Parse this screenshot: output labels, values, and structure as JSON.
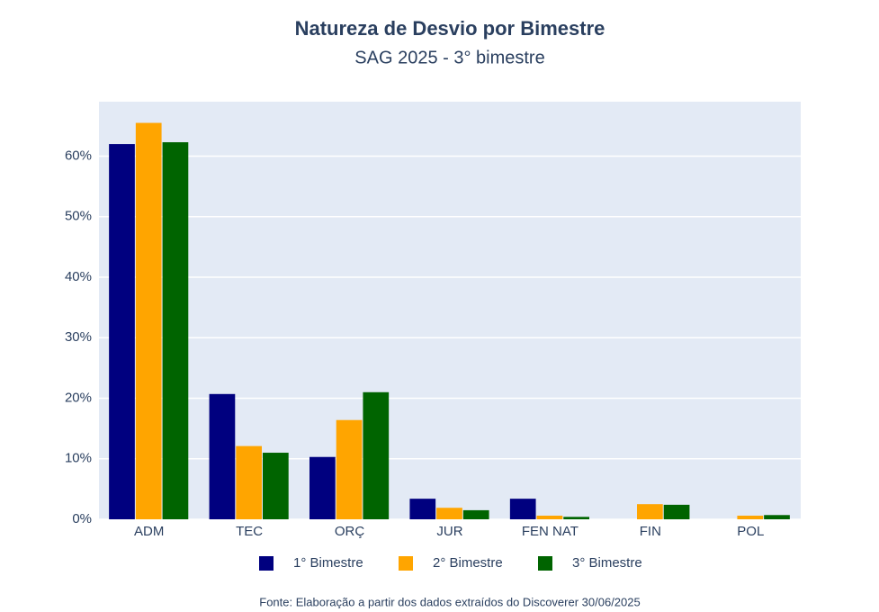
{
  "chart_data": {
    "type": "bar",
    "title": "Natureza de Desvio por Bimestre",
    "subtitle": "SAG 2025 - 3° bimestre",
    "source": "Fonte: Elaboração a partir dos dados extraídos do Discoverer 30/06/2025",
    "categories": [
      "ADM",
      "TEC",
      "ORÇ",
      "JUR",
      "FEN NAT",
      "FIN",
      "POL"
    ],
    "series": [
      {
        "name": "1° Bimestre",
        "color": "#00007f",
        "values": [
          62,
          20.7,
          10.3,
          3.4,
          3.4,
          0,
          0
        ]
      },
      {
        "name": "2° Bimestre",
        "color": "#ffa500",
        "values": [
          65.5,
          12.1,
          16.4,
          1.9,
          0.6,
          2.5,
          0.6
        ]
      },
      {
        "name": "3° Bimestre",
        "color": "#006400",
        "values": [
          62.3,
          11,
          21,
          1.5,
          0.4,
          2.4,
          0.7
        ]
      }
    ],
    "ylim": [
      0,
      69
    ],
    "yticks": [
      {
        "value": 0,
        "label": "0%"
      },
      {
        "value": 10,
        "label": "10%"
      },
      {
        "value": 20,
        "label": "20%"
      },
      {
        "value": 30,
        "label": "30%"
      },
      {
        "value": 40,
        "label": "40%"
      },
      {
        "value": 50,
        "label": "50%"
      },
      {
        "value": 60,
        "label": "60%"
      }
    ],
    "grid": true,
    "legend": "bottom"
  }
}
